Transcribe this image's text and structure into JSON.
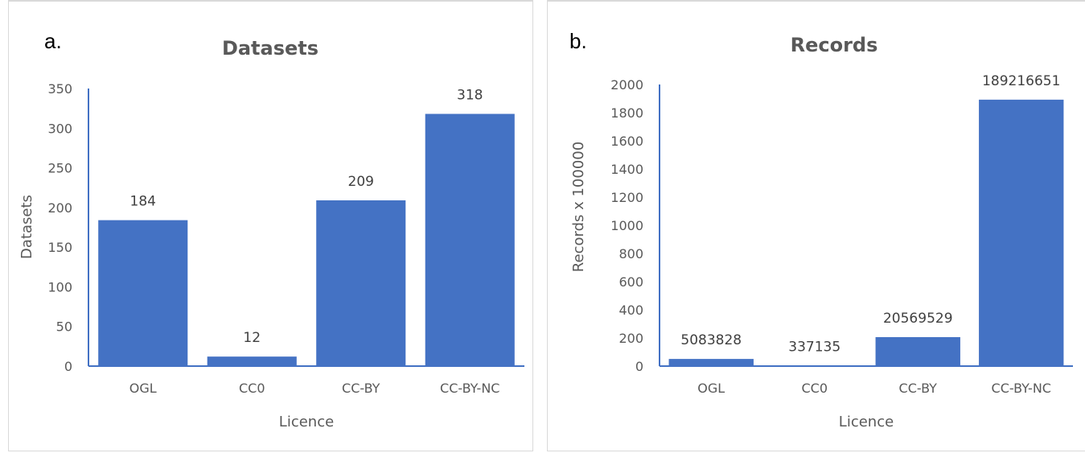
{
  "colors": {
    "bar": "#4472c4",
    "axis": "#4472c4",
    "text": "#595959"
  },
  "chart_data": [
    {
      "type": "bar",
      "panel_label": "a.",
      "title": "Datasets",
      "xlabel": "Licence",
      "ylabel": "Datasets",
      "categories": [
        "OGL",
        "CC0",
        "CC-BY",
        "CC-BY-NC"
      ],
      "values": [
        184,
        12,
        209,
        318
      ],
      "data_labels": [
        "184",
        "12",
        "209",
        "318"
      ],
      "ylim": [
        0,
        350
      ],
      "yticks": [
        0,
        50,
        100,
        150,
        200,
        250,
        300,
        350
      ],
      "grid": false,
      "legend": "none"
    },
    {
      "type": "bar",
      "panel_label": "b.",
      "title": "Records",
      "xlabel": "Licence",
      "ylabel": "Records  x 100000",
      "categories": [
        "OGL",
        "CC0",
        "CC-BY",
        "CC-BY-NC"
      ],
      "values": [
        50.83828,
        3.37135,
        205.69529,
        1892.16651
      ],
      "data_labels": [
        "5083828",
        "337135",
        "20569529",
        "189216651"
      ],
      "ylim": [
        0,
        2000
      ],
      "yticks": [
        0,
        200,
        400,
        600,
        800,
        1000,
        1200,
        1400,
        1600,
        1800,
        2000
      ],
      "grid": false,
      "legend": "none"
    }
  ]
}
